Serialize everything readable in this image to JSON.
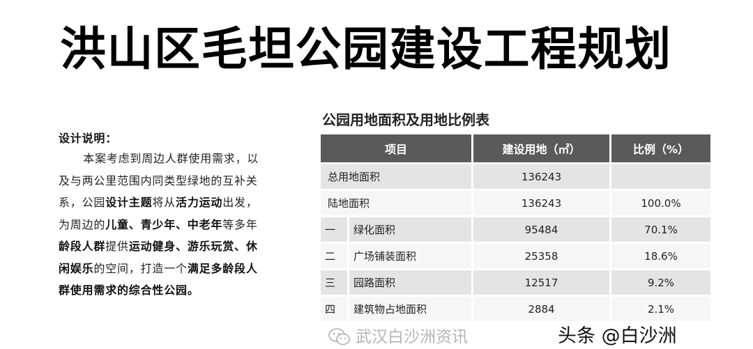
{
  "title": "洪山区毛坦公园建设工程规划",
  "description": {
    "heading": "设计说明：",
    "segments": [
      {
        "text": "本案考虑到周边人群使用需求，以及与两公里范围内同类型绿地的互补关系，公园",
        "bold": false
      },
      {
        "text": "设计主题",
        "bold": true
      },
      {
        "text": "将从",
        "bold": false
      },
      {
        "text": "活力运动",
        "bold": true
      },
      {
        "text": "出发，为周边的",
        "bold": false
      },
      {
        "text": "儿童、青少年、中老年",
        "bold": true
      },
      {
        "text": "等多年",
        "bold": false
      },
      {
        "text": "龄段人群",
        "bold": true
      },
      {
        "text": "提供",
        "bold": false
      },
      {
        "text": "运动健身、游乐玩赏、休闲娱乐",
        "bold": true
      },
      {
        "text": "的空间，打造一个",
        "bold": false
      },
      {
        "text": "满足多龄段人群使用需求的综合性公园。",
        "bold": true
      }
    ]
  },
  "table": {
    "title": "公园用地面积及用地比例表",
    "headers": [
      "项目",
      "建设用地（㎡）",
      "比例（%）"
    ],
    "rows": [
      {
        "index": "",
        "item": "总用地面积",
        "area": "136243",
        "ratio": ""
      },
      {
        "index": "",
        "item": "陆地面积",
        "area": "136243",
        "ratio": "100.0%"
      },
      {
        "index": "一",
        "item": "绿化面积",
        "area": "95484",
        "ratio": "70.1%"
      },
      {
        "index": "二",
        "item": "广场铺装面积",
        "area": "25358",
        "ratio": "18.6%"
      },
      {
        "index": "三",
        "item": "园路面积",
        "area": "12517",
        "ratio": "9.2%"
      },
      {
        "index": "四",
        "item": "建筑物占地面积",
        "area": "2884",
        "ratio": "2.1%"
      }
    ]
  },
  "watermark": {
    "wechat": "武汉白沙洲资讯",
    "toutiao": "头条 @白沙洲",
    "icon": "wechat-icon"
  }
}
